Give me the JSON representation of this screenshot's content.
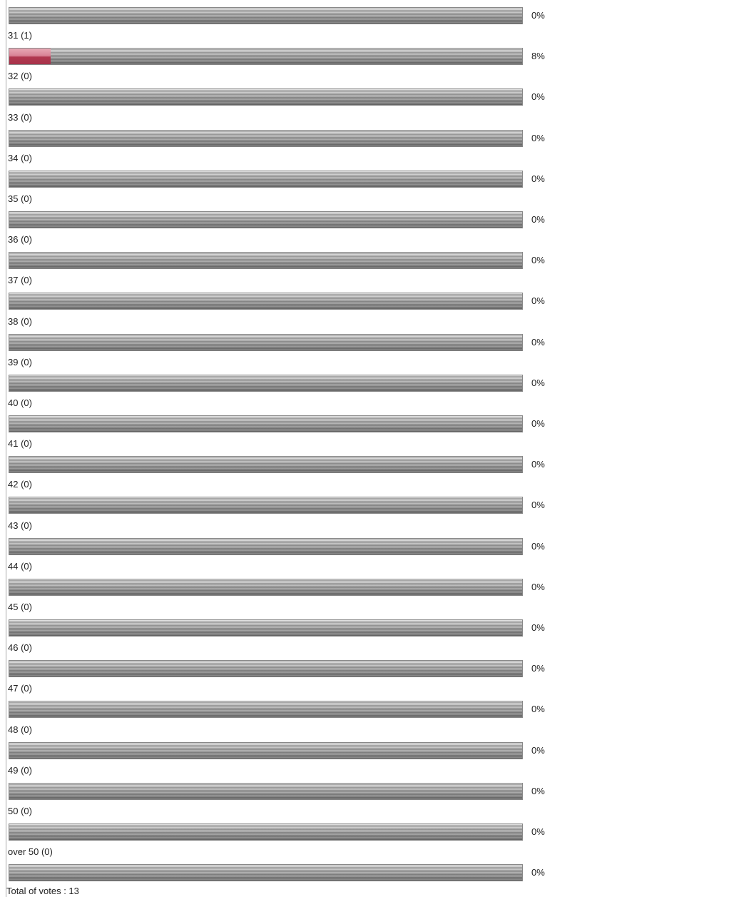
{
  "poll": {
    "items": [
      {
        "percent": 0,
        "percent_label": "0%"
      },
      {
        "label": "31 (1)",
        "percent": 8,
        "percent_label": "8%"
      },
      {
        "label": "32 (0)",
        "percent": 0,
        "percent_label": "0%"
      },
      {
        "label": "33 (0)",
        "percent": 0,
        "percent_label": "0%"
      },
      {
        "label": "34 (0)",
        "percent": 0,
        "percent_label": "0%"
      },
      {
        "label": "35 (0)",
        "percent": 0,
        "percent_label": "0%"
      },
      {
        "label": "36 (0)",
        "percent": 0,
        "percent_label": "0%"
      },
      {
        "label": "37 (0)",
        "percent": 0,
        "percent_label": "0%"
      },
      {
        "label": "38 (0)",
        "percent": 0,
        "percent_label": "0%"
      },
      {
        "label": "39 (0)",
        "percent": 0,
        "percent_label": "0%"
      },
      {
        "label": "40 (0)",
        "percent": 0,
        "percent_label": "0%"
      },
      {
        "label": "41 (0)",
        "percent": 0,
        "percent_label": "0%"
      },
      {
        "label": "42 (0)",
        "percent": 0,
        "percent_label": "0%"
      },
      {
        "label": "43 (0)",
        "percent": 0,
        "percent_label": "0%"
      },
      {
        "label": "44 (0)",
        "percent": 0,
        "percent_label": "0%"
      },
      {
        "label": "45 (0)",
        "percent": 0,
        "percent_label": "0%"
      },
      {
        "label": "46 (0)",
        "percent": 0,
        "percent_label": "0%"
      },
      {
        "label": "47 (0)",
        "percent": 0,
        "percent_label": "0%"
      },
      {
        "label": "48 (0)",
        "percent": 0,
        "percent_label": "0%"
      },
      {
        "label": "49 (0)",
        "percent": 0,
        "percent_label": "0%"
      },
      {
        "label": "50 (0)",
        "percent": 0,
        "percent_label": "0%"
      },
      {
        "label": "over 50 (0)",
        "percent": 0,
        "percent_label": "0%"
      }
    ],
    "total": "Total of votes : 13"
  }
}
